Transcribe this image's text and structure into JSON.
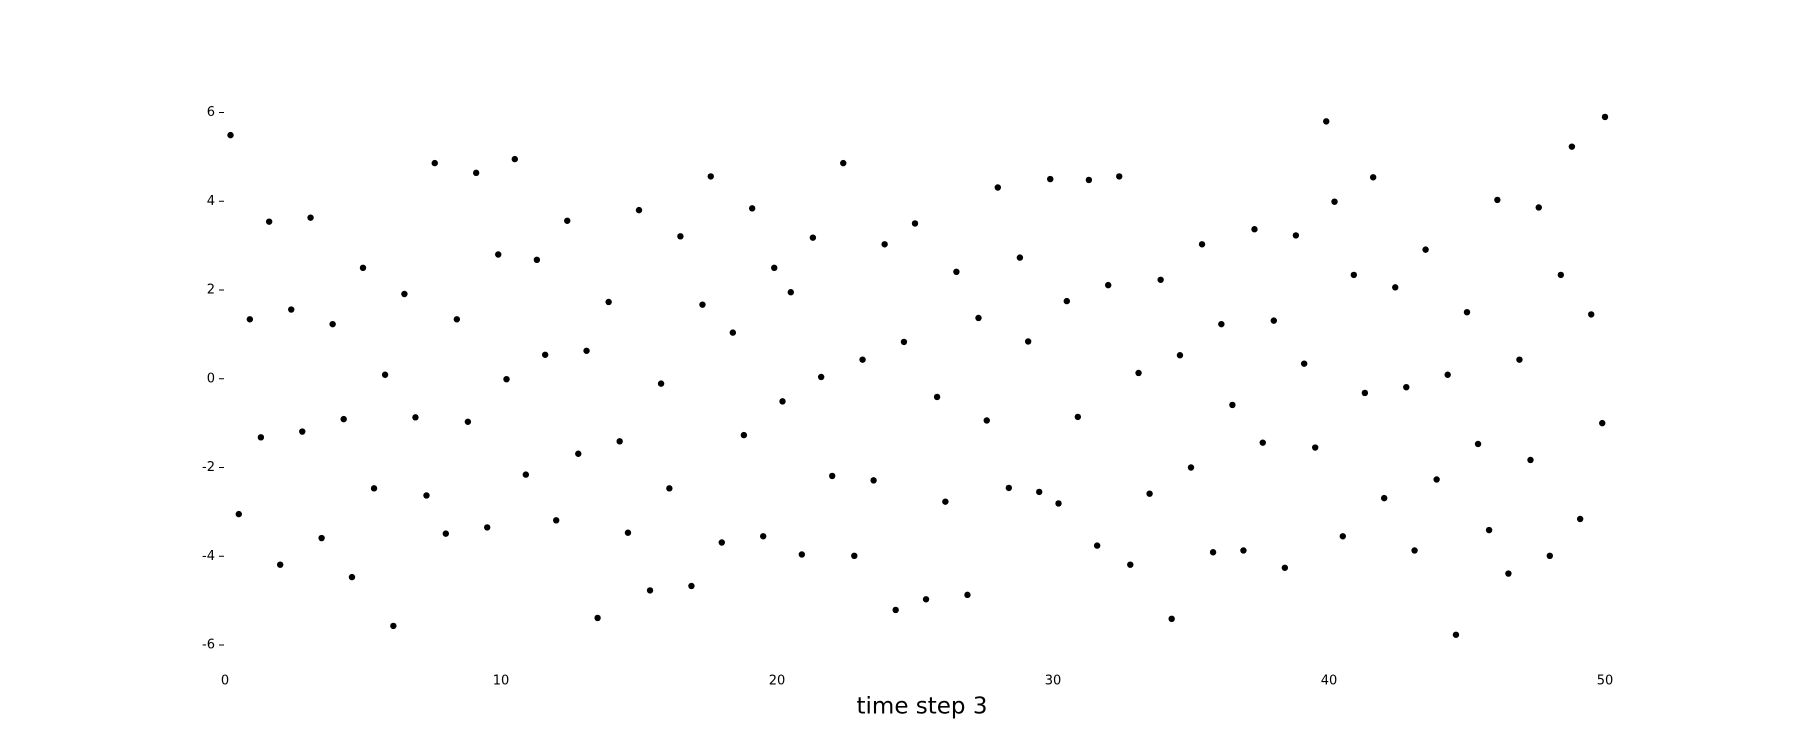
{
  "chart_data": {
    "type": "scatter",
    "xlabel": "time step 3",
    "color": "#000000",
    "xlim": [
      0,
      50
    ],
    "ylim": [
      -6,
      6
    ],
    "xticks": [
      0,
      10,
      20,
      30,
      40,
      50
    ],
    "yticks": [
      -6,
      -4,
      -2,
      0,
      2,
      4,
      6
    ],
    "x": [
      0.2,
      0.5,
      0.9,
      1.3,
      1.6,
      2.0,
      2.4,
      2.8,
      3.1,
      3.5,
      3.9,
      4.3,
      4.6,
      5.0,
      5.4,
      5.8,
      6.1,
      6.5,
      6.9,
      7.3,
      7.6,
      8.0,
      8.4,
      8.8,
      9.1,
      9.5,
      9.9,
      10.2,
      10.5,
      10.9,
      11.3,
      11.6,
      12.0,
      12.4,
      12.8,
      13.1,
      13.5,
      13.9,
      14.3,
      14.6,
      15.0,
      15.4,
      15.8,
      16.1,
      16.5,
      16.9,
      17.3,
      17.6,
      18.0,
      18.4,
      18.8,
      19.1,
      19.5,
      19.9,
      20.2,
      20.5,
      20.9,
      21.3,
      21.6,
      22.0,
      22.4,
      22.8,
      23.1,
      23.5,
      23.9,
      24.3,
      24.6,
      25.0,
      25.4,
      25.8,
      26.1,
      26.5,
      26.9,
      27.3,
      27.6,
      28.0,
      28.4,
      28.8,
      29.1,
      29.5,
      29.9,
      30.2,
      30.5,
      30.9,
      31.3,
      31.6,
      32.0,
      32.4,
      32.8,
      33.1,
      33.5,
      33.9,
      34.3,
      34.6,
      35.0,
      35.4,
      35.8,
      36.1,
      36.5,
      36.9,
      37.3,
      37.6,
      38.0,
      38.4,
      38.8,
      39.1,
      39.5,
      39.9,
      40.2,
      40.5,
      40.9,
      41.3,
      41.6,
      42.0,
      42.4,
      42.8,
      43.1,
      43.5,
      43.9,
      44.3,
      44.6,
      45.0,
      45.4,
      45.8,
      46.1,
      46.5,
      46.9,
      47.3,
      47.6,
      48.0,
      48.4,
      48.8,
      49.1,
      49.5,
      49.9,
      50
    ],
    "y": [
      5.49,
      -3.05,
      1.34,
      -1.32,
      3.54,
      -4.19,
      1.56,
      -1.19,
      3.63,
      -3.59,
      1.23,
      -0.91,
      -4.47,
      2.5,
      -2.47,
      0.09,
      -5.57,
      1.91,
      -0.87,
      -2.63,
      4.86,
      -3.49,
      1.34,
      -0.97,
      4.64,
      -3.35,
      2.8,
      -0.01,
      4.95,
      -2.16,
      2.68,
      0.54,
      -3.19,
      3.56,
      -1.69,
      0.63,
      -5.39,
      1.73,
      -1.41,
      -3.47,
      3.8,
      -4.77,
      -0.11,
      -2.47,
      3.21,
      -4.67,
      1.67,
      4.56,
      -3.69,
      1.04,
      -1.27,
      3.84,
      -3.55,
      2.5,
      -0.51,
      1.95,
      -3.96,
      3.18,
      0.04,
      -2.19,
      4.86,
      -3.99,
      0.43,
      -2.29,
      3.03,
      -5.21,
      0.83,
      3.5,
      -4.97,
      -0.41,
      -2.77,
      2.41,
      -4.87,
      1.37,
      -0.94,
      4.31,
      -2.46,
      2.73,
      0.84,
      -2.55,
      4.5,
      -2.81,
      1.75,
      -0.86,
      4.48,
      -3.76,
      2.11,
      4.56,
      -4.19,
      0.13,
      -2.59,
      2.23,
      -5.41,
      0.53,
      -2,
      3.03,
      -3.91,
      1.23,
      -0.59,
      -3.87,
      3.37,
      -1.44,
      1.31,
      -4.26,
      3.23,
      0.34,
      -1.55,
      5.8,
      3.99,
      -3.55,
      2.34,
      -0.32,
      4.54,
      -2.69,
      2.06,
      -0.19,
      -3.87,
      2.91,
      -2.27,
      0.09,
      -5.77,
      1.5,
      -1.47,
      -3.41,
      4.03,
      -4.39,
      0.43,
      -1.83,
      3.86,
      -3.99,
      2.34,
      5.23,
      -3.16,
      1.45,
      -1.0,
      5.9
    ]
  }
}
